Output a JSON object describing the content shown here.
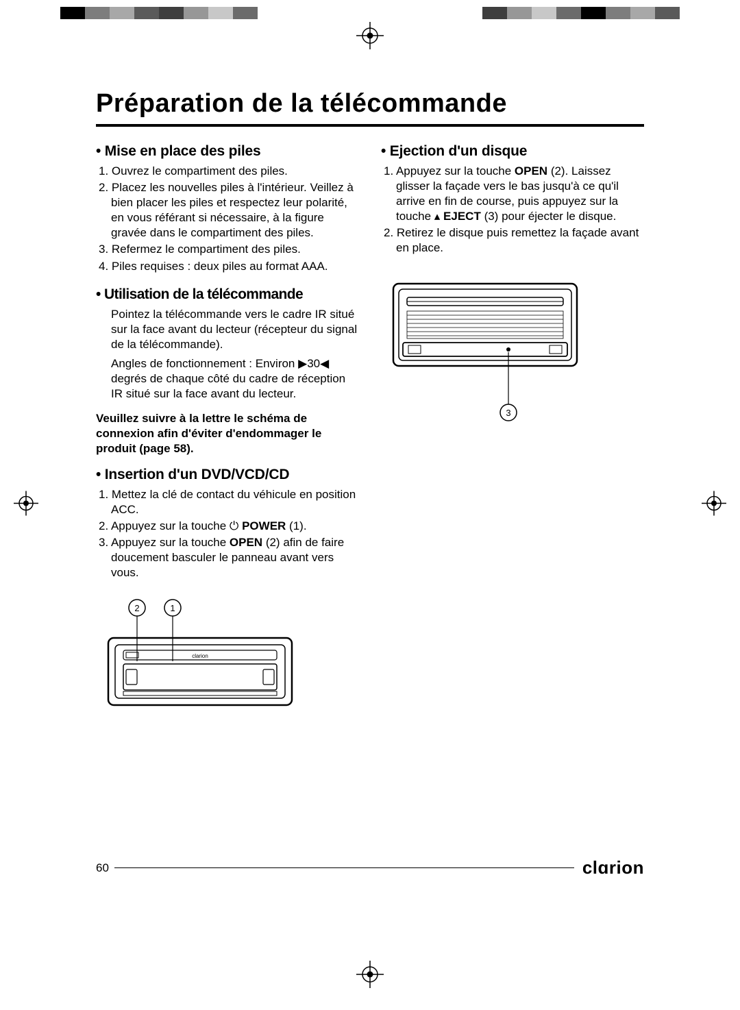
{
  "page": {
    "title": "Préparation de la télécommande",
    "page_number": "60",
    "brand": "clɑrion"
  },
  "colors": {
    "text": "#000000",
    "bg": "#ffffff",
    "rule": "#000000"
  },
  "colorbar_left": [
    "#000000",
    "#7d7d7d",
    "#a8a8a8",
    "#5a5a5a",
    "#3e3e3e",
    "#979797",
    "#c8c8c8",
    "#6b6b6b"
  ],
  "colorbar_right": [
    "#3e3e3e",
    "#979797",
    "#c8c8c8",
    "#6b6b6b",
    "#000000",
    "#7d7d7d",
    "#a8a8a8",
    "#5a5a5a"
  ],
  "left_column": {
    "s1": {
      "head": "• Mise en place des piles",
      "items": [
        "1. Ouvrez le compartiment des piles.",
        "2. Placez les nouvelles piles à l'intérieur. Veillez à bien placer les piles et respectez leur polarité, en vous référant si nécessaire, à la figure gravée dans le compartiment des piles.",
        "3. Refermez le compartiment des piles.",
        "4. Piles requises : deux piles au format AAA."
      ]
    },
    "s2": {
      "head": "• Utilisation de la télécommande",
      "p1": "Pointez la télécommande vers le cadre IR situé sur la face avant du lecteur (récepteur du signal de la télécommande).",
      "p2_pre": "Angles de fonctionnement : Environ ",
      "p2_sym": "▶30◀",
      "p2_post": " degrés de chaque côté du cadre de réception IR situé sur la face avant du lecteur."
    },
    "warning": "Veuillez suivre à la lettre le schéma de connexion afin d'éviter d'endommager le produit (page 58).",
    "s3": {
      "head": "• Insertion d'un DVD/VCD/CD",
      "items_parts": [
        [
          {
            "t": "1. Mettez la clé de contact du véhicule en position ACC."
          }
        ],
        [
          {
            "t": "2. Appuyez sur la touche "
          },
          {
            "t": "⏻",
            "sym": true
          },
          {
            "t": " "
          },
          {
            "t": "POWER",
            "b": true
          },
          {
            "t": " (1)."
          }
        ],
        [
          {
            "t": "3. Appuyez sur la touche "
          },
          {
            "t": "OPEN",
            "b": true
          },
          {
            "t": " (2) afin de faire doucement basculer le panneau avant vers vous."
          }
        ]
      ]
    },
    "diagram1": {
      "callouts": [
        "2",
        "1"
      ],
      "logo": "clarion"
    }
  },
  "right_column": {
    "s1": {
      "head": "• Ejection d'un disque",
      "items_parts": [
        [
          {
            "t": "1. Appuyez sur la touche "
          },
          {
            "t": "OPEN",
            "b": true
          },
          {
            "t": " (2). Laissez glisser la façade vers le bas jusqu'à ce qu'il arrive en fin de course, puis appuyez sur la touche "
          },
          {
            "t": "▴",
            "sym": true
          },
          {
            "t": " "
          },
          {
            "t": "EJECT",
            "b": true
          },
          {
            "t": " (3) pour éjecter le disque."
          }
        ],
        [
          {
            "t": "2. Retirez le disque puis remettez la façade avant en place."
          }
        ]
      ]
    },
    "diagram2": {
      "callout": "3"
    }
  },
  "typography": {
    "title_pt": 38,
    "head_pt": 21,
    "body_pt": 17
  }
}
